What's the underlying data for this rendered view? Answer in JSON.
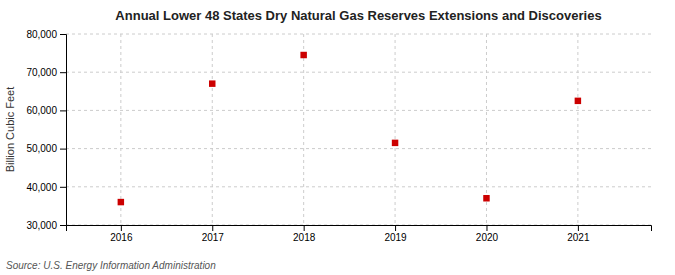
{
  "chart_data": {
    "type": "scatter",
    "title": "Annual Lower 48 States Dry Natural Gas Reserves Extensions and Discoveries",
    "ylabel": "Billion Cubic Feet",
    "annotation": "Source: U.S. Energy Information Administration",
    "x": [
      2016,
      2017,
      2018,
      2019,
      2020,
      2021
    ],
    "values": [
      36000,
      67000,
      74500,
      51500,
      37000,
      62500
    ],
    "color": "#cc0000",
    "marker": "square",
    "xlim": [
      2015.4,
      2021.8
    ],
    "xticks": [
      2016,
      2017,
      2018,
      2019,
      2020,
      2021
    ],
    "ylim": [
      30000,
      80000
    ],
    "yticks": [
      {
        "value": 30000,
        "label": "30,000"
      },
      {
        "value": 40000,
        "label": "40,000"
      },
      {
        "value": 50000,
        "label": "50,000"
      },
      {
        "value": 60000,
        "label": "60,000"
      },
      {
        "value": 70000,
        "label": "70,000"
      },
      {
        "value": 80000,
        "label": "80,000"
      }
    ],
    "grid": true
  }
}
